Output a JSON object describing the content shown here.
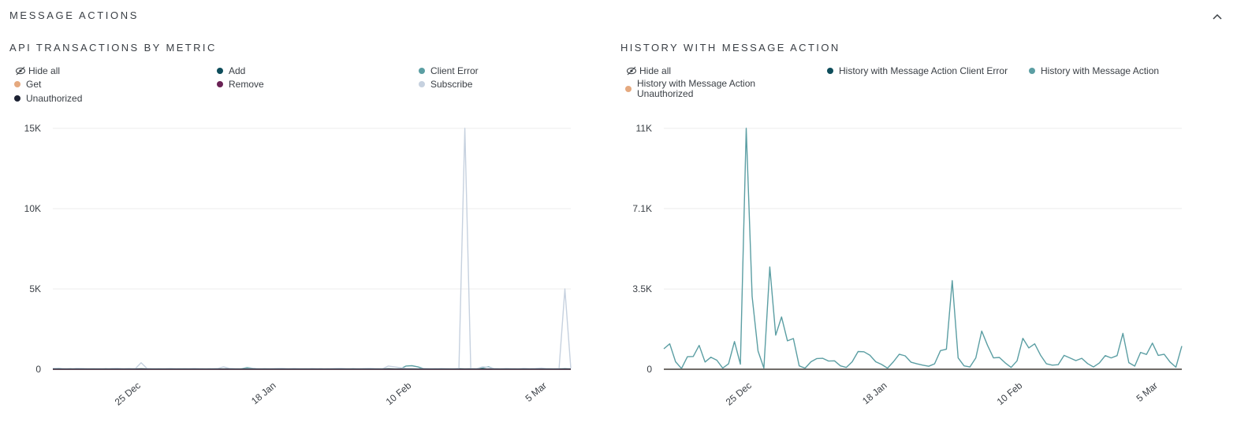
{
  "section": {
    "title": "MESSAGE ACTIONS"
  },
  "panels": {
    "left": {
      "title": "API TRANSACTIONS BY METRIC",
      "hide_all": "Hide all",
      "legend": [
        {
          "label": "Add",
          "color": "#0e4d5b"
        },
        {
          "label": "Client Error",
          "color": "#5b9ea3"
        },
        {
          "label": "Get",
          "color": "#e5a97f"
        },
        {
          "label": "Remove",
          "color": "#6a2255"
        },
        {
          "label": "Subscribe",
          "color": "#c6d1df"
        },
        {
          "label": "Unauthorized",
          "color": "#1d2233"
        }
      ]
    },
    "right": {
      "title": "HISTORY WITH MESSAGE ACTION",
      "hide_all": "Hide all",
      "legend": [
        {
          "label": "History with Message Action Client Error",
          "color": "#0e4d5b"
        },
        {
          "label": "History with Message Action",
          "color": "#5b9ea3"
        },
        {
          "label": "History with Message Action Unauthorized",
          "color": "#e5a97f"
        }
      ]
    }
  },
  "chart_data": [
    {
      "type": "line",
      "title": "API TRANSACTIONS BY METRIC",
      "ylim": [
        0,
        15000
      ],
      "y_ticks": [
        0,
        5000,
        10000,
        15000
      ],
      "y_tick_labels": [
        "0",
        "5K",
        "10K",
        "15K"
      ],
      "x_tick_labels": [
        "25 Dec",
        "18 Jan",
        "10 Feb",
        "5 Mar"
      ],
      "x_tick_positions": [
        15,
        38,
        61,
        84
      ],
      "grid": true,
      "series": [
        {
          "name": "Add",
          "color": "#0e4d5b",
          "values": [
            20,
            15,
            10,
            25,
            15,
            10,
            20,
            15,
            10,
            25,
            15,
            10,
            20,
            15,
            10,
            25,
            15,
            10,
            20,
            15,
            10,
            25,
            15,
            10,
            20,
            15,
            10,
            25,
            15,
            10,
            20,
            15,
            10,
            25,
            15,
            10,
            20,
            15,
            10,
            25,
            15,
            10,
            20,
            15,
            10,
            25,
            15,
            10,
            20,
            15,
            10,
            25,
            15,
            10,
            20,
            15,
            10,
            25,
            15,
            10,
            20,
            15,
            10,
            25,
            15,
            10,
            20,
            15,
            10,
            25,
            15,
            10,
            20,
            15,
            10,
            25,
            15,
            10,
            20,
            15,
            10,
            25,
            15,
            10,
            20,
            15,
            10,
            25,
            15
          ]
        },
        {
          "name": "Client Error",
          "color": "#5b9ea3",
          "values": [
            40,
            60,
            30,
            20,
            30,
            40,
            20,
            30,
            20,
            20,
            30,
            40,
            20,
            20,
            30,
            20,
            20,
            30,
            20,
            20,
            30,
            20,
            30,
            40,
            20,
            30,
            20,
            30,
            20,
            20,
            30,
            20,
            30,
            100,
            60,
            30,
            30,
            20,
            20,
            30,
            20,
            30,
            20,
            30,
            20,
            40,
            20,
            30,
            20,
            20,
            30,
            20,
            20,
            30,
            20,
            30,
            20,
            30,
            20,
            20,
            200,
            220,
            150,
            40,
            20,
            30,
            20,
            20,
            20,
            20,
            20,
            30,
            30,
            80,
            150,
            30,
            20,
            30,
            20,
            20,
            30,
            20,
            20,
            40,
            30,
            20,
            30,
            20,
            20
          ]
        },
        {
          "name": "Get",
          "color": "#e5a97f",
          "values": [
            0,
            0,
            0,
            0,
            0,
            0,
            0,
            0,
            0,
            0,
            0,
            0,
            0,
            0,
            0,
            0,
            0,
            0,
            0,
            0,
            0,
            0,
            0,
            0,
            0,
            0,
            0,
            0,
            0,
            0,
            0,
            0,
            0,
            0,
            0,
            0,
            0,
            0,
            0,
            0,
            0,
            0,
            0,
            0,
            0,
            0,
            0,
            0,
            0,
            0,
            0,
            0,
            0,
            0,
            0,
            0,
            0,
            0,
            0,
            0,
            0,
            0,
            0,
            0,
            0,
            0,
            0,
            0,
            0,
            0,
            0,
            0,
            0,
            0,
            0,
            0,
            0,
            0,
            0,
            0,
            0,
            0,
            0,
            0,
            0,
            0,
            0,
            0,
            0
          ]
        },
        {
          "name": "Remove",
          "color": "#6a2255",
          "values": [
            0,
            0,
            0,
            0,
            0,
            0,
            0,
            0,
            0,
            0,
            0,
            0,
            0,
            0,
            0,
            0,
            0,
            0,
            0,
            0,
            0,
            0,
            0,
            0,
            0,
            0,
            0,
            0,
            0,
            0,
            0,
            0,
            0,
            0,
            0,
            0,
            0,
            0,
            0,
            0,
            0,
            0,
            0,
            0,
            0,
            0,
            0,
            0,
            0,
            0,
            0,
            0,
            0,
            0,
            0,
            0,
            0,
            0,
            0,
            0,
            0,
            0,
            0,
            0,
            0,
            0,
            0,
            0,
            0,
            0,
            0,
            0,
            0,
            0,
            0,
            0,
            0,
            0,
            0,
            0,
            0,
            0,
            0,
            0,
            0,
            0,
            0,
            0,
            0
          ]
        },
        {
          "name": "Subscribe",
          "color": "#c6d1df",
          "values": [
            60,
            50,
            40,
            30,
            60,
            50,
            40,
            30,
            40,
            30,
            50,
            60,
            40,
            50,
            30,
            400,
            50,
            40,
            30,
            40,
            50,
            40,
            30,
            40,
            50,
            40,
            30,
            40,
            50,
            150,
            60,
            40,
            30,
            40,
            50,
            40,
            30,
            40,
            50,
            60,
            40,
            50,
            40,
            30,
            50,
            40,
            30,
            40,
            50,
            60,
            40,
            30,
            40,
            50,
            60,
            40,
            30,
            200,
            150,
            100,
            50,
            40,
            30,
            50,
            40,
            30,
            50,
            40,
            30,
            60,
            15000,
            50,
            40,
            150,
            120,
            40,
            30,
            50,
            40,
            30,
            60,
            40,
            50,
            80,
            40,
            30,
            40,
            5000,
            60
          ]
        },
        {
          "name": "Unauthorized",
          "color": "#1d2233",
          "values": [
            10,
            10,
            10,
            10,
            10,
            10,
            10,
            10,
            10,
            10,
            10,
            10,
            10,
            10,
            10,
            10,
            10,
            10,
            10,
            10,
            10,
            10,
            10,
            10,
            10,
            10,
            10,
            10,
            10,
            10,
            10,
            10,
            10,
            10,
            10,
            10,
            10,
            10,
            10,
            10,
            10,
            10,
            10,
            10,
            10,
            10,
            10,
            10,
            10,
            10,
            10,
            10,
            10,
            10,
            10,
            10,
            10,
            10,
            10,
            10,
            10,
            10,
            10,
            10,
            10,
            10,
            10,
            10,
            10,
            10,
            10,
            10,
            10,
            10,
            10,
            10,
            10,
            10,
            10,
            10,
            10,
            10,
            10,
            10,
            10,
            10,
            10,
            10,
            10
          ]
        }
      ]
    },
    {
      "type": "line",
      "title": "HISTORY WITH MESSAGE ACTION",
      "ylim": [
        0,
        10600
      ],
      "y_ticks": [
        0,
        3530,
        7070,
        10600
      ],
      "y_tick_labels": [
        "0",
        "3.5K",
        "7.1K",
        "11K"
      ],
      "x_tick_labels": [
        "25 Dec",
        "18 Jan",
        "10 Feb",
        "5 Mar"
      ],
      "x_tick_positions": [
        15,
        38,
        61,
        84
      ],
      "grid": true,
      "series": [
        {
          "name": "History with Message Action Client Error",
          "color": "#0e4d5b",
          "values": [
            0,
            0,
            0,
            0,
            0,
            0,
            0,
            0,
            0,
            0,
            0,
            0,
            0,
            0,
            0,
            0,
            0,
            0,
            0,
            0,
            0,
            0,
            0,
            0,
            0,
            0,
            0,
            0,
            0,
            0,
            0,
            0,
            0,
            0,
            0,
            0,
            0,
            0,
            0,
            0,
            0,
            0,
            0,
            0,
            0,
            0,
            0,
            0,
            0,
            0,
            0,
            0,
            0,
            0,
            0,
            0,
            0,
            0,
            0,
            0,
            0,
            0,
            0,
            0,
            0,
            0,
            0,
            0,
            0,
            0,
            0,
            0,
            0,
            0,
            0,
            0,
            0,
            0,
            0,
            0,
            0,
            0,
            0,
            0,
            0,
            0,
            0,
            0,
            0
          ]
        },
        {
          "name": "History with Message Action",
          "color": "#5b9ea3",
          "values": [
            900,
            1120,
            330,
            30,
            550,
            560,
            1050,
            320,
            530,
            400,
            50,
            240,
            1220,
            220,
            10600,
            3200,
            800,
            50,
            4500,
            1500,
            2300,
            1250,
            1350,
            150,
            50,
            330,
            470,
            480,
            360,
            370,
            150,
            80,
            330,
            780,
            770,
            620,
            330,
            210,
            50,
            330,
            660,
            590,
            310,
            240,
            180,
            130,
            240,
            820,
            880,
            3900,
            500,
            150,
            100,
            500,
            1680,
            1050,
            500,
            520,
            280,
            80,
            370,
            1360,
            940,
            1120,
            620,
            240,
            180,
            200,
            610,
            500,
            380,
            480,
            250,
            100,
            280,
            600,
            500,
            600,
            1580,
            290,
            140,
            740,
            650,
            1150,
            610,
            660,
            320,
            90,
            1020
          ]
        },
        {
          "name": "History with Message Action Unauthorized",
          "color": "#e5a97f",
          "values": [
            0,
            0,
            0,
            0,
            0,
            0,
            0,
            0,
            0,
            0,
            0,
            0,
            0,
            0,
            0,
            0,
            0,
            0,
            0,
            0,
            0,
            0,
            0,
            0,
            0,
            0,
            0,
            0,
            0,
            0,
            0,
            0,
            0,
            0,
            0,
            0,
            0,
            0,
            0,
            0,
            0,
            0,
            0,
            0,
            0,
            0,
            0,
            0,
            0,
            0,
            0,
            0,
            0,
            0,
            0,
            0,
            0,
            0,
            0,
            0,
            0,
            0,
            0,
            0,
            0,
            0,
            0,
            0,
            0,
            0,
            0,
            0,
            0,
            0,
            0,
            0,
            0,
            0,
            0,
            0,
            0,
            0,
            0,
            0,
            0,
            0,
            0,
            0,
            0
          ]
        }
      ]
    }
  ]
}
